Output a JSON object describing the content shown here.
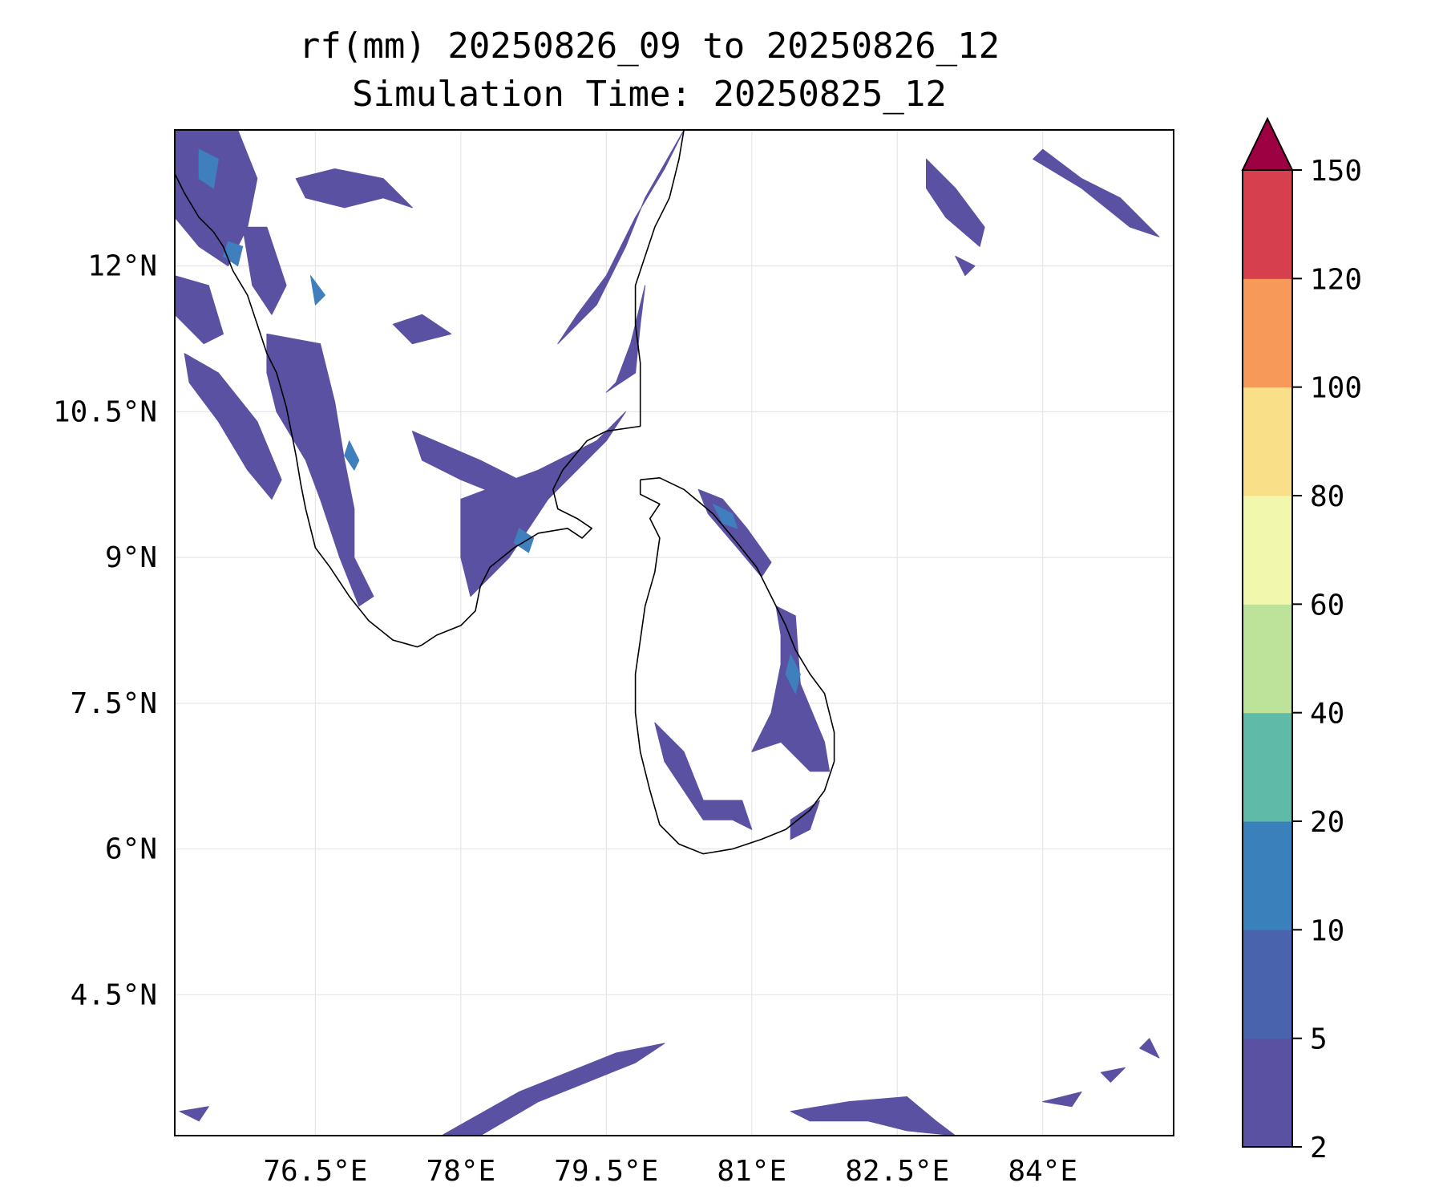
{
  "title": {
    "line1": "rf(mm) 20250826_09 to 20250826_12",
    "line2": "Simulation Time: 20250825_12"
  },
  "map": {
    "lon_range": [
      75.05,
      85.35
    ],
    "lat_range": [
      3.05,
      13.4
    ],
    "x_ticks": [
      {
        "value": 76.5,
        "label": "76.5°E"
      },
      {
        "value": 78.0,
        "label": "78°E"
      },
      {
        "value": 79.5,
        "label": "79.5°E"
      },
      {
        "value": 81.0,
        "label": "81°E"
      },
      {
        "value": 82.5,
        "label": "82.5°E"
      },
      {
        "value": 84.0,
        "label": "84°E"
      }
    ],
    "y_ticks": [
      {
        "value": 12.0,
        "label": "12°N"
      },
      {
        "value": 10.5,
        "label": "10.5°N"
      },
      {
        "value": 9.0,
        "label": "9°N"
      },
      {
        "value": 7.5,
        "label": "7.5°N"
      },
      {
        "value": 6.0,
        "label": "6°N"
      },
      {
        "value": 4.5,
        "label": "4.5°N"
      }
    ],
    "gridlines": true,
    "rain_color_main": "#5b51a3",
    "rain_color_light": "#3f7fbd",
    "rain_areas": [
      {
        "level": "2-5",
        "points": [
          [
            75.05,
            13.4
          ],
          [
            75.7,
            13.4
          ],
          [
            75.9,
            12.9
          ],
          [
            75.8,
            12.4
          ],
          [
            75.6,
            12.0
          ],
          [
            75.3,
            12.2
          ],
          [
            75.05,
            12.5
          ]
        ]
      },
      {
        "level": "2-5",
        "points": [
          [
            75.05,
            11.9
          ],
          [
            75.4,
            11.8
          ],
          [
            75.55,
            11.3
          ],
          [
            75.35,
            11.2
          ],
          [
            75.05,
            11.5
          ]
        ]
      },
      {
        "level": "2-5",
        "points": [
          [
            75.15,
            11.1
          ],
          [
            75.5,
            10.9
          ],
          [
            75.9,
            10.4
          ],
          [
            76.15,
            9.8
          ],
          [
            76.05,
            9.6
          ],
          [
            75.8,
            9.9
          ],
          [
            75.5,
            10.4
          ],
          [
            75.2,
            10.8
          ]
        ]
      },
      {
        "level": "2-5",
        "points": [
          [
            75.75,
            12.4
          ],
          [
            76.0,
            12.4
          ],
          [
            76.2,
            11.8
          ],
          [
            76.05,
            11.5
          ],
          [
            75.85,
            11.8
          ]
        ]
      },
      {
        "level": "2-5",
        "points": [
          [
            76.0,
            11.3
          ],
          [
            76.55,
            11.2
          ],
          [
            76.7,
            10.6
          ],
          [
            76.8,
            10.0
          ],
          [
            76.9,
            9.5
          ],
          [
            76.9,
            9.0
          ],
          [
            77.1,
            8.6
          ],
          [
            76.95,
            8.5
          ],
          [
            76.75,
            9.0
          ],
          [
            76.55,
            9.6
          ],
          [
            76.4,
            10.0
          ],
          [
            76.1,
            10.5
          ],
          [
            76.0,
            10.9
          ]
        ]
      },
      {
        "level": "2-5",
        "points": [
          [
            76.3,
            12.9
          ],
          [
            76.7,
            13.0
          ],
          [
            77.2,
            12.9
          ],
          [
            77.5,
            12.6
          ],
          [
            77.2,
            12.7
          ],
          [
            76.8,
            12.6
          ],
          [
            76.4,
            12.7
          ]
        ]
      },
      {
        "level": "2-5",
        "points": [
          [
            77.3,
            11.4
          ],
          [
            77.6,
            11.5
          ],
          [
            77.9,
            11.3
          ],
          [
            77.5,
            11.2
          ]
        ]
      },
      {
        "level": "2-5",
        "points": [
          [
            77.5,
            10.3
          ],
          [
            78.2,
            10.0
          ],
          [
            78.6,
            9.8
          ],
          [
            78.5,
            9.6
          ],
          [
            78.0,
            9.8
          ],
          [
            77.6,
            10.0
          ]
        ]
      },
      {
        "level": "2-5",
        "points": [
          [
            78.0,
            9.6
          ],
          [
            78.8,
            9.9
          ],
          [
            79.4,
            10.2
          ],
          [
            79.7,
            10.5
          ],
          [
            79.5,
            10.2
          ],
          [
            78.9,
            9.6
          ],
          [
            78.5,
            9.0
          ],
          [
            78.1,
            8.6
          ],
          [
            78.0,
            9.0
          ]
        ]
      },
      {
        "level": "2-5",
        "points": [
          [
            79.0,
            11.2
          ],
          [
            79.4,
            11.6
          ],
          [
            79.7,
            12.2
          ],
          [
            79.9,
            12.7
          ],
          [
            80.3,
            13.4
          ],
          [
            80.1,
            13.0
          ],
          [
            79.8,
            12.5
          ],
          [
            79.5,
            11.9
          ],
          [
            79.2,
            11.5
          ]
        ]
      },
      {
        "level": "2-5",
        "points": [
          [
            79.5,
            10.7
          ],
          [
            79.8,
            10.9
          ],
          [
            79.85,
            11.4
          ],
          [
            79.9,
            11.8
          ],
          [
            79.75,
            11.2
          ],
          [
            79.6,
            10.8
          ]
        ]
      },
      {
        "level": "2-5",
        "points": [
          [
            80.45,
            9.7
          ],
          [
            80.7,
            9.6
          ],
          [
            80.95,
            9.3
          ],
          [
            81.2,
            8.95
          ],
          [
            81.1,
            8.8
          ],
          [
            80.85,
            9.1
          ],
          [
            80.55,
            9.45
          ]
        ]
      },
      {
        "level": "2-5",
        "points": [
          [
            81.25,
            8.5
          ],
          [
            81.45,
            8.4
          ],
          [
            81.5,
            7.7
          ],
          [
            81.75,
            7.1
          ],
          [
            81.8,
            6.8
          ],
          [
            81.6,
            6.8
          ],
          [
            81.3,
            7.1
          ],
          [
            81.0,
            7.0
          ],
          [
            81.2,
            7.4
          ],
          [
            81.3,
            7.9
          ],
          [
            81.3,
            8.2
          ]
        ]
      },
      {
        "level": "2-5",
        "points": [
          [
            80.0,
            7.3
          ],
          [
            80.3,
            7.0
          ],
          [
            80.5,
            6.5
          ],
          [
            80.9,
            6.5
          ],
          [
            81.0,
            6.2
          ],
          [
            80.8,
            6.3
          ],
          [
            80.5,
            6.3
          ],
          [
            80.3,
            6.6
          ],
          [
            80.1,
            6.9
          ]
        ]
      },
      {
        "level": "2-5",
        "points": [
          [
            81.4,
            6.3
          ],
          [
            81.7,
            6.5
          ],
          [
            81.6,
            6.2
          ],
          [
            81.4,
            6.1
          ]
        ]
      },
      {
        "level": "2-5",
        "points": [
          [
            82.8,
            13.1
          ],
          [
            83.1,
            12.8
          ],
          [
            83.4,
            12.4
          ],
          [
            83.35,
            12.2
          ],
          [
            83.0,
            12.5
          ],
          [
            82.8,
            12.8
          ]
        ]
      },
      {
        "level": "2-5",
        "points": [
          [
            83.9,
            13.1
          ],
          [
            84.4,
            12.8
          ],
          [
            84.9,
            12.4
          ],
          [
            85.2,
            12.3
          ],
          [
            84.8,
            12.7
          ],
          [
            84.4,
            12.9
          ],
          [
            84.0,
            13.2
          ]
        ]
      },
      {
        "level": "2-5",
        "points": [
          [
            83.1,
            12.1
          ],
          [
            83.3,
            12.0
          ],
          [
            83.2,
            11.9
          ]
        ]
      },
      {
        "level": "2-5",
        "points": [
          [
            75.1,
            3.3
          ],
          [
            75.4,
            3.35
          ],
          [
            75.3,
            3.2
          ]
        ]
      },
      {
        "level": "2-5",
        "points": [
          [
            77.8,
            3.05
          ],
          [
            78.6,
            3.5
          ],
          [
            79.1,
            3.7
          ],
          [
            79.6,
            3.9
          ],
          [
            80.1,
            4.0
          ],
          [
            79.8,
            3.8
          ],
          [
            79.3,
            3.6
          ],
          [
            78.8,
            3.4
          ],
          [
            78.2,
            3.05
          ]
        ]
      },
      {
        "level": "2-5",
        "points": [
          [
            81.4,
            3.3
          ],
          [
            82.0,
            3.4
          ],
          [
            82.6,
            3.45
          ],
          [
            82.9,
            3.2
          ],
          [
            83.1,
            3.05
          ],
          [
            82.6,
            3.1
          ],
          [
            82.2,
            3.2
          ],
          [
            81.6,
            3.2
          ]
        ]
      },
      {
        "level": "2-5",
        "points": [
          [
            84.0,
            3.4
          ],
          [
            84.4,
            3.5
          ],
          [
            84.3,
            3.35
          ]
        ]
      },
      {
        "level": "2-5",
        "points": [
          [
            84.6,
            3.7
          ],
          [
            84.85,
            3.75
          ],
          [
            84.7,
            3.6
          ]
        ]
      },
      {
        "level": "2-5",
        "points": [
          [
            85.0,
            3.95
          ],
          [
            85.2,
            3.85
          ],
          [
            85.1,
            4.05
          ]
        ]
      },
      {
        "level": "5-10",
        "points": [
          [
            75.3,
            13.2
          ],
          [
            75.5,
            13.1
          ],
          [
            75.45,
            12.8
          ],
          [
            75.3,
            12.9
          ]
        ]
      },
      {
        "level": "5-10",
        "points": [
          [
            75.6,
            12.25
          ],
          [
            75.75,
            12.2
          ],
          [
            75.7,
            12.0
          ],
          [
            75.55,
            12.1
          ]
        ]
      },
      {
        "level": "5-10",
        "points": [
          [
            76.45,
            11.9
          ],
          [
            76.6,
            11.7
          ],
          [
            76.5,
            11.6
          ]
        ]
      },
      {
        "level": "5-10",
        "points": [
          [
            80.6,
            9.55
          ],
          [
            80.8,
            9.45
          ],
          [
            80.85,
            9.3
          ],
          [
            80.7,
            9.35
          ]
        ]
      },
      {
        "level": "5-10",
        "points": [
          [
            81.4,
            8.0
          ],
          [
            81.5,
            7.8
          ],
          [
            81.45,
            7.6
          ],
          [
            81.35,
            7.8
          ]
        ]
      },
      {
        "level": "5-10",
        "points": [
          [
            78.6,
            9.3
          ],
          [
            78.75,
            9.2
          ],
          [
            78.7,
            9.05
          ],
          [
            78.55,
            9.15
          ]
        ]
      },
      {
        "level": "5-10",
        "points": [
          [
            76.85,
            10.2
          ],
          [
            76.95,
            10.0
          ],
          [
            76.9,
            9.9
          ],
          [
            76.8,
            10.05
          ]
        ]
      }
    ],
    "coastlines": [
      {
        "name": "india",
        "points": [
          [
            75.05,
            12.95
          ],
          [
            75.15,
            12.75
          ],
          [
            75.3,
            12.5
          ],
          [
            75.45,
            12.35
          ],
          [
            75.55,
            12.2
          ],
          [
            75.65,
            11.95
          ],
          [
            75.8,
            11.7
          ],
          [
            75.9,
            11.4
          ],
          [
            76.0,
            11.1
          ],
          [
            76.1,
            10.9
          ],
          [
            76.2,
            10.55
          ],
          [
            76.25,
            10.3
          ],
          [
            76.3,
            10.05
          ],
          [
            76.35,
            9.75
          ],
          [
            76.4,
            9.5
          ],
          [
            76.5,
            9.1
          ],
          [
            76.65,
            8.9
          ],
          [
            76.85,
            8.6
          ],
          [
            77.05,
            8.35
          ],
          [
            77.3,
            8.15
          ],
          [
            77.55,
            8.08
          ],
          [
            77.6,
            8.1
          ],
          [
            77.75,
            8.2
          ],
          [
            78.0,
            8.3
          ],
          [
            78.15,
            8.45
          ],
          [
            78.2,
            8.7
          ],
          [
            78.3,
            8.9
          ],
          [
            78.55,
            9.1
          ],
          [
            78.8,
            9.25
          ],
          [
            79.1,
            9.3
          ],
          [
            79.25,
            9.2
          ],
          [
            79.35,
            9.3
          ],
          [
            79.2,
            9.4
          ],
          [
            79.0,
            9.5
          ],
          [
            78.95,
            9.7
          ],
          [
            79.05,
            9.9
          ],
          [
            79.3,
            10.2
          ],
          [
            79.5,
            10.3
          ],
          [
            79.85,
            10.35
          ],
          [
            79.85,
            10.6
          ],
          [
            79.85,
            11.0
          ],
          [
            79.8,
            11.4
          ],
          [
            79.8,
            11.8
          ],
          [
            79.9,
            12.1
          ],
          [
            80.0,
            12.4
          ],
          [
            80.15,
            12.7
          ],
          [
            80.25,
            13.1
          ],
          [
            80.3,
            13.4
          ]
        ]
      },
      {
        "name": "sri-lanka",
        "points": [
          [
            79.85,
            9.8
          ],
          [
            80.05,
            9.82
          ],
          [
            80.3,
            9.7
          ],
          [
            80.6,
            9.45
          ],
          [
            80.85,
            9.15
          ],
          [
            81.05,
            8.9
          ],
          [
            81.2,
            8.6
          ],
          [
            81.35,
            8.3
          ],
          [
            81.45,
            8.05
          ],
          [
            81.6,
            7.8
          ],
          [
            81.75,
            7.6
          ],
          [
            81.85,
            7.2
          ],
          [
            81.85,
            6.9
          ],
          [
            81.75,
            6.6
          ],
          [
            81.6,
            6.4
          ],
          [
            81.35,
            6.2
          ],
          [
            81.1,
            6.1
          ],
          [
            80.8,
            6.0
          ],
          [
            80.5,
            5.95
          ],
          [
            80.25,
            6.05
          ],
          [
            80.05,
            6.25
          ],
          [
            79.95,
            6.6
          ],
          [
            79.85,
            7.0
          ],
          [
            79.8,
            7.4
          ],
          [
            79.8,
            7.8
          ],
          [
            79.85,
            8.15
          ],
          [
            79.9,
            8.5
          ],
          [
            80.0,
            8.85
          ],
          [
            80.05,
            9.2
          ],
          [
            79.95,
            9.4
          ],
          [
            80.05,
            9.55
          ],
          [
            79.85,
            9.65
          ],
          [
            79.85,
            9.8
          ]
        ]
      }
    ]
  },
  "colorbar": {
    "ticks": [
      "2",
      "5",
      "10",
      "20",
      "40",
      "60",
      "80",
      "100",
      "120",
      "150"
    ],
    "colors": [
      "#5b51a3",
      "#4a63ad",
      "#3a80bb",
      "#5fbba7",
      "#bde39b",
      "#f1f8ad",
      "#fadf89",
      "#f79a59",
      "#d6404e"
    ],
    "extend_color": "#9e0142"
  }
}
